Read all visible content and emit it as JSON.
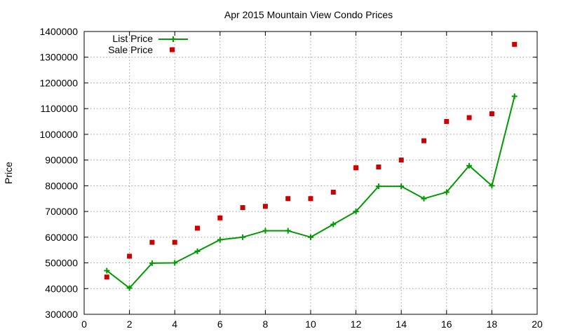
{
  "chart_data": {
    "type": "line",
    "title": "Apr 2015 Mountain View Condo Prices",
    "xlabel": "",
    "ylabel": "Price",
    "xlim": [
      0,
      20
    ],
    "ylim": [
      300000,
      1400000
    ],
    "x_ticks": [
      0,
      2,
      4,
      6,
      8,
      10,
      12,
      14,
      16,
      18,
      20
    ],
    "y_ticks": [
      300000,
      400000,
      500000,
      600000,
      700000,
      800000,
      900000,
      1000000,
      1100000,
      1200000,
      1300000,
      1400000
    ],
    "grid": true,
    "legend_position": "top-left",
    "series": [
      {
        "name": "List Price",
        "style": "line-with-plus-markers",
        "color": "#009900",
        "x": [
          1,
          2,
          3,
          4,
          5,
          6,
          7,
          8,
          9,
          10,
          11,
          12,
          13,
          14,
          15,
          16,
          17,
          18,
          19
        ],
        "values": [
          470000,
          402000,
          499000,
          500000,
          545000,
          590000,
          600000,
          625000,
          625000,
          600000,
          650000,
          700000,
          798000,
          798000,
          750000,
          775000,
          878000,
          800000,
          1148000
        ]
      },
      {
        "name": "Sale Price",
        "style": "square-markers",
        "color": "#cc0000",
        "x": [
          1,
          2,
          3,
          4,
          5,
          6,
          7,
          8,
          9,
          10,
          11,
          12,
          13,
          14,
          15,
          16,
          17,
          18,
          19
        ],
        "values": [
          445000,
          526000,
          580000,
          580000,
          635000,
          675000,
          715000,
          720000,
          750000,
          750000,
          775000,
          870000,
          873000,
          900000,
          975000,
          1050000,
          1065000,
          1080000,
          1350000
        ]
      }
    ]
  }
}
